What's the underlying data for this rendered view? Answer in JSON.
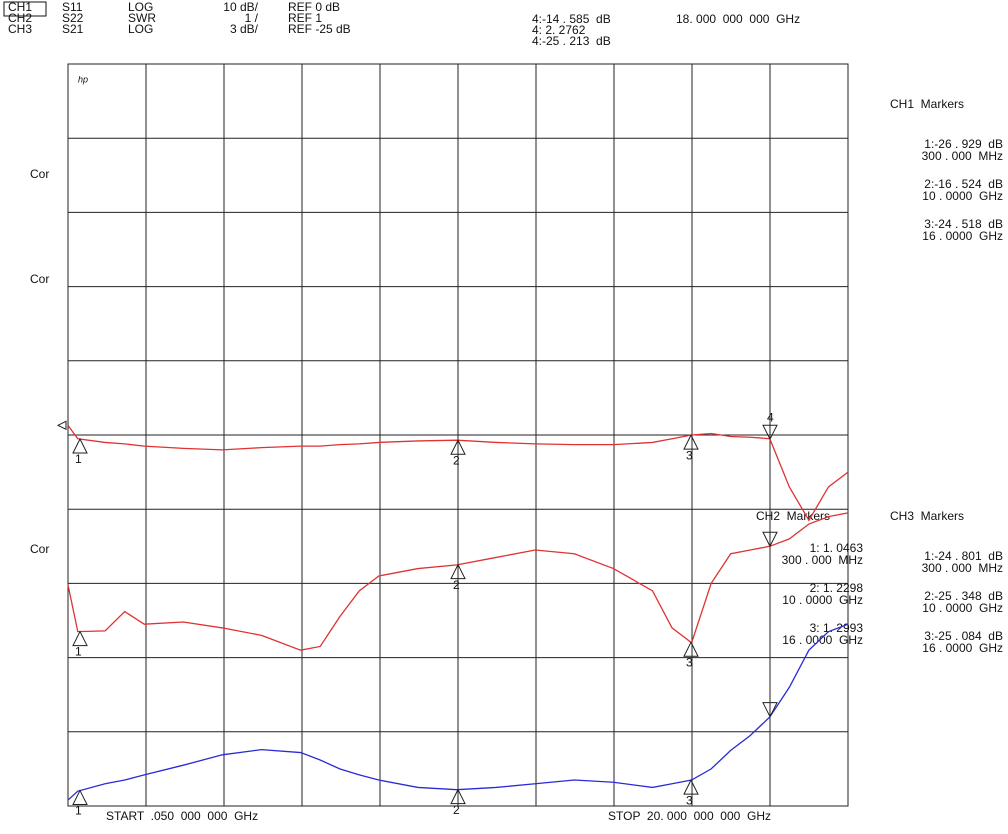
{
  "chart_data": {
    "type": "line",
    "header": [
      [
        "S11",
        "LOG",
        "10 dB/",
        "REF 0 dB"
      ],
      [
        "S22",
        "SWR",
        "1 /",
        "REF 1"
      ],
      [
        "S21",
        "LOG",
        "3 dB/",
        "REF -25 dB"
      ]
    ],
    "readouts": [
      "4:-14 . 585  dB",
      "4: 2. 2762",
      "4:-25 . 213  dB"
    ],
    "readout_freq": "18. 000  000  000  GHz",
    "side_labels": [
      "Cor",
      "Cor",
      "Cor"
    ],
    "logo": "hp",
    "start": "START  .050  000  000  GHz",
    "stop": "STOP  20. 000  000  000  GHz",
    "marker_numbers": [
      "1",
      "2",
      "3",
      "4"
    ],
    "panels": [
      {
        "title": "CH1  Markers",
        "entries": [
          [
            "1:-26 . 929  dB",
            "300 . 000  MHz"
          ],
          [
            "2:-16 . 524  dB",
            "10 . 0000  GHz"
          ],
          [
            "3:-24 . 518  dB",
            "16 . 0000  GHz"
          ]
        ]
      },
      {
        "title": "CH2  Markers",
        "entries": [
          [
            "1: 1. 0463",
            "300 . 000  MHz"
          ],
          [
            "2: 1. 2298",
            "10 . 0000  GHz"
          ],
          [
            "3: 1. 2993",
            "16 . 0000  GHz"
          ]
        ]
      },
      {
        "title": "CH3  Markers",
        "entries": [
          [
            "1:-24 . 801  dB",
            "300 . 000  MHz"
          ],
          [
            "2:-25 . 348  dB",
            "10 . 0000  GHz"
          ],
          [
            "3:-25 . 084  dB",
            "16 . 0000  GHz"
          ]
        ]
      }
    ],
    "xlim": [
      0.05,
      20
    ],
    "ylim": [
      0,
      10
    ],
    "divisions": 10,
    "x": [
      0.05,
      0.3,
      1,
      1.5,
      2,
      3,
      4,
      5,
      6,
      6.5,
      7,
      7.5,
      8,
      9,
      10,
      11,
      12,
      13,
      14,
      15,
      15.5,
      16,
      16.5,
      17,
      17.5,
      18,
      18.5,
      19,
      19.5,
      20
    ],
    "series": [
      {
        "name": "CH1",
        "color": "#e03232",
        "values": [
          5.13,
          4.95,
          4.9,
          4.88,
          4.85,
          4.82,
          4.8,
          4.83,
          4.85,
          4.85,
          4.87,
          4.88,
          4.9,
          4.92,
          4.93,
          4.9,
          4.88,
          4.87,
          4.87,
          4.9,
          4.95,
          5.0,
          5.02,
          4.98,
          4.97,
          4.95,
          4.3,
          3.85,
          4.3,
          4.5
        ]
      },
      {
        "name": "CH2",
        "color": "#e03232",
        "values": [
          2.98,
          2.35,
          2.36,
          2.62,
          2.45,
          2.48,
          2.4,
          2.3,
          2.1,
          2.15,
          2.55,
          2.9,
          3.1,
          3.2,
          3.25,
          3.35,
          3.45,
          3.4,
          3.2,
          2.9,
          2.4,
          2.2,
          3.0,
          3.4,
          3.45,
          3.5,
          3.6,
          3.8,
          3.9,
          3.95
        ]
      },
      {
        "name": "CH3",
        "color": "#2a2ad8",
        "values": [
          0.08,
          0.2,
          0.3,
          0.35,
          0.42,
          0.55,
          0.69,
          0.76,
          0.72,
          0.62,
          0.5,
          0.42,
          0.35,
          0.25,
          0.22,
          0.25,
          0.3,
          0.35,
          0.32,
          0.25,
          0.3,
          0.35,
          0.5,
          0.75,
          0.95,
          1.2,
          1.6,
          2.1,
          2.35,
          2.45
        ]
      }
    ]
  }
}
